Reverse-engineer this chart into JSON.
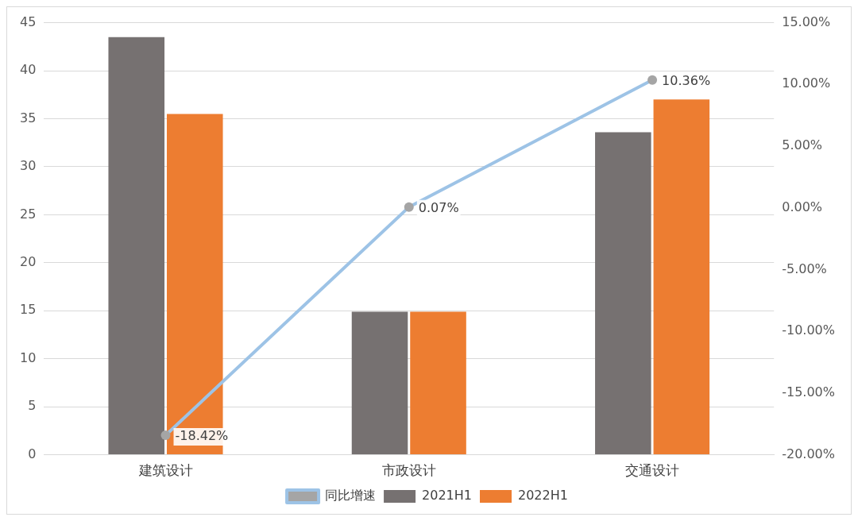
{
  "chart_data": {
    "type": "bar",
    "categories": [
      "建筑设计",
      "市政设计",
      "交通设计"
    ],
    "series": [
      {
        "name": "2021H1",
        "color": "#767171",
        "values": [
          43.5,
          14.9,
          33.6
        ]
      },
      {
        "name": "2022H1",
        "color": "#ed7d31",
        "values": [
          35.5,
          14.9,
          37.0
        ]
      },
      {
        "name": "同比增速",
        "type": "line",
        "axis": "y2",
        "color": "#9dc3e6",
        "marker": "circle",
        "values": [
          -18.42,
          0.07,
          10.36
        ],
        "value_labels": [
          "-18.42%",
          "0.07%",
          "10.36%"
        ]
      }
    ],
    "ylim": [
      0,
      45
    ],
    "yticks": [
      0,
      5,
      10,
      15,
      20,
      25,
      30,
      35,
      40,
      45
    ],
    "y2lim": [
      -20,
      15
    ],
    "y2ticks": [
      {
        "value": -20,
        "label": "-20.00%"
      },
      {
        "value": -15,
        "label": "-15.00%"
      },
      {
        "value": -10,
        "label": "-10.00%"
      },
      {
        "value": -5,
        "label": "-5.00%"
      },
      {
        "value": 0,
        "label": "0.00%"
      },
      {
        "value": 5,
        "label": "5.00%"
      },
      {
        "value": 10,
        "label": "10.00%"
      },
      {
        "value": 15,
        "label": "15.00%"
      }
    ],
    "grid": "y",
    "legend": "bottom"
  }
}
